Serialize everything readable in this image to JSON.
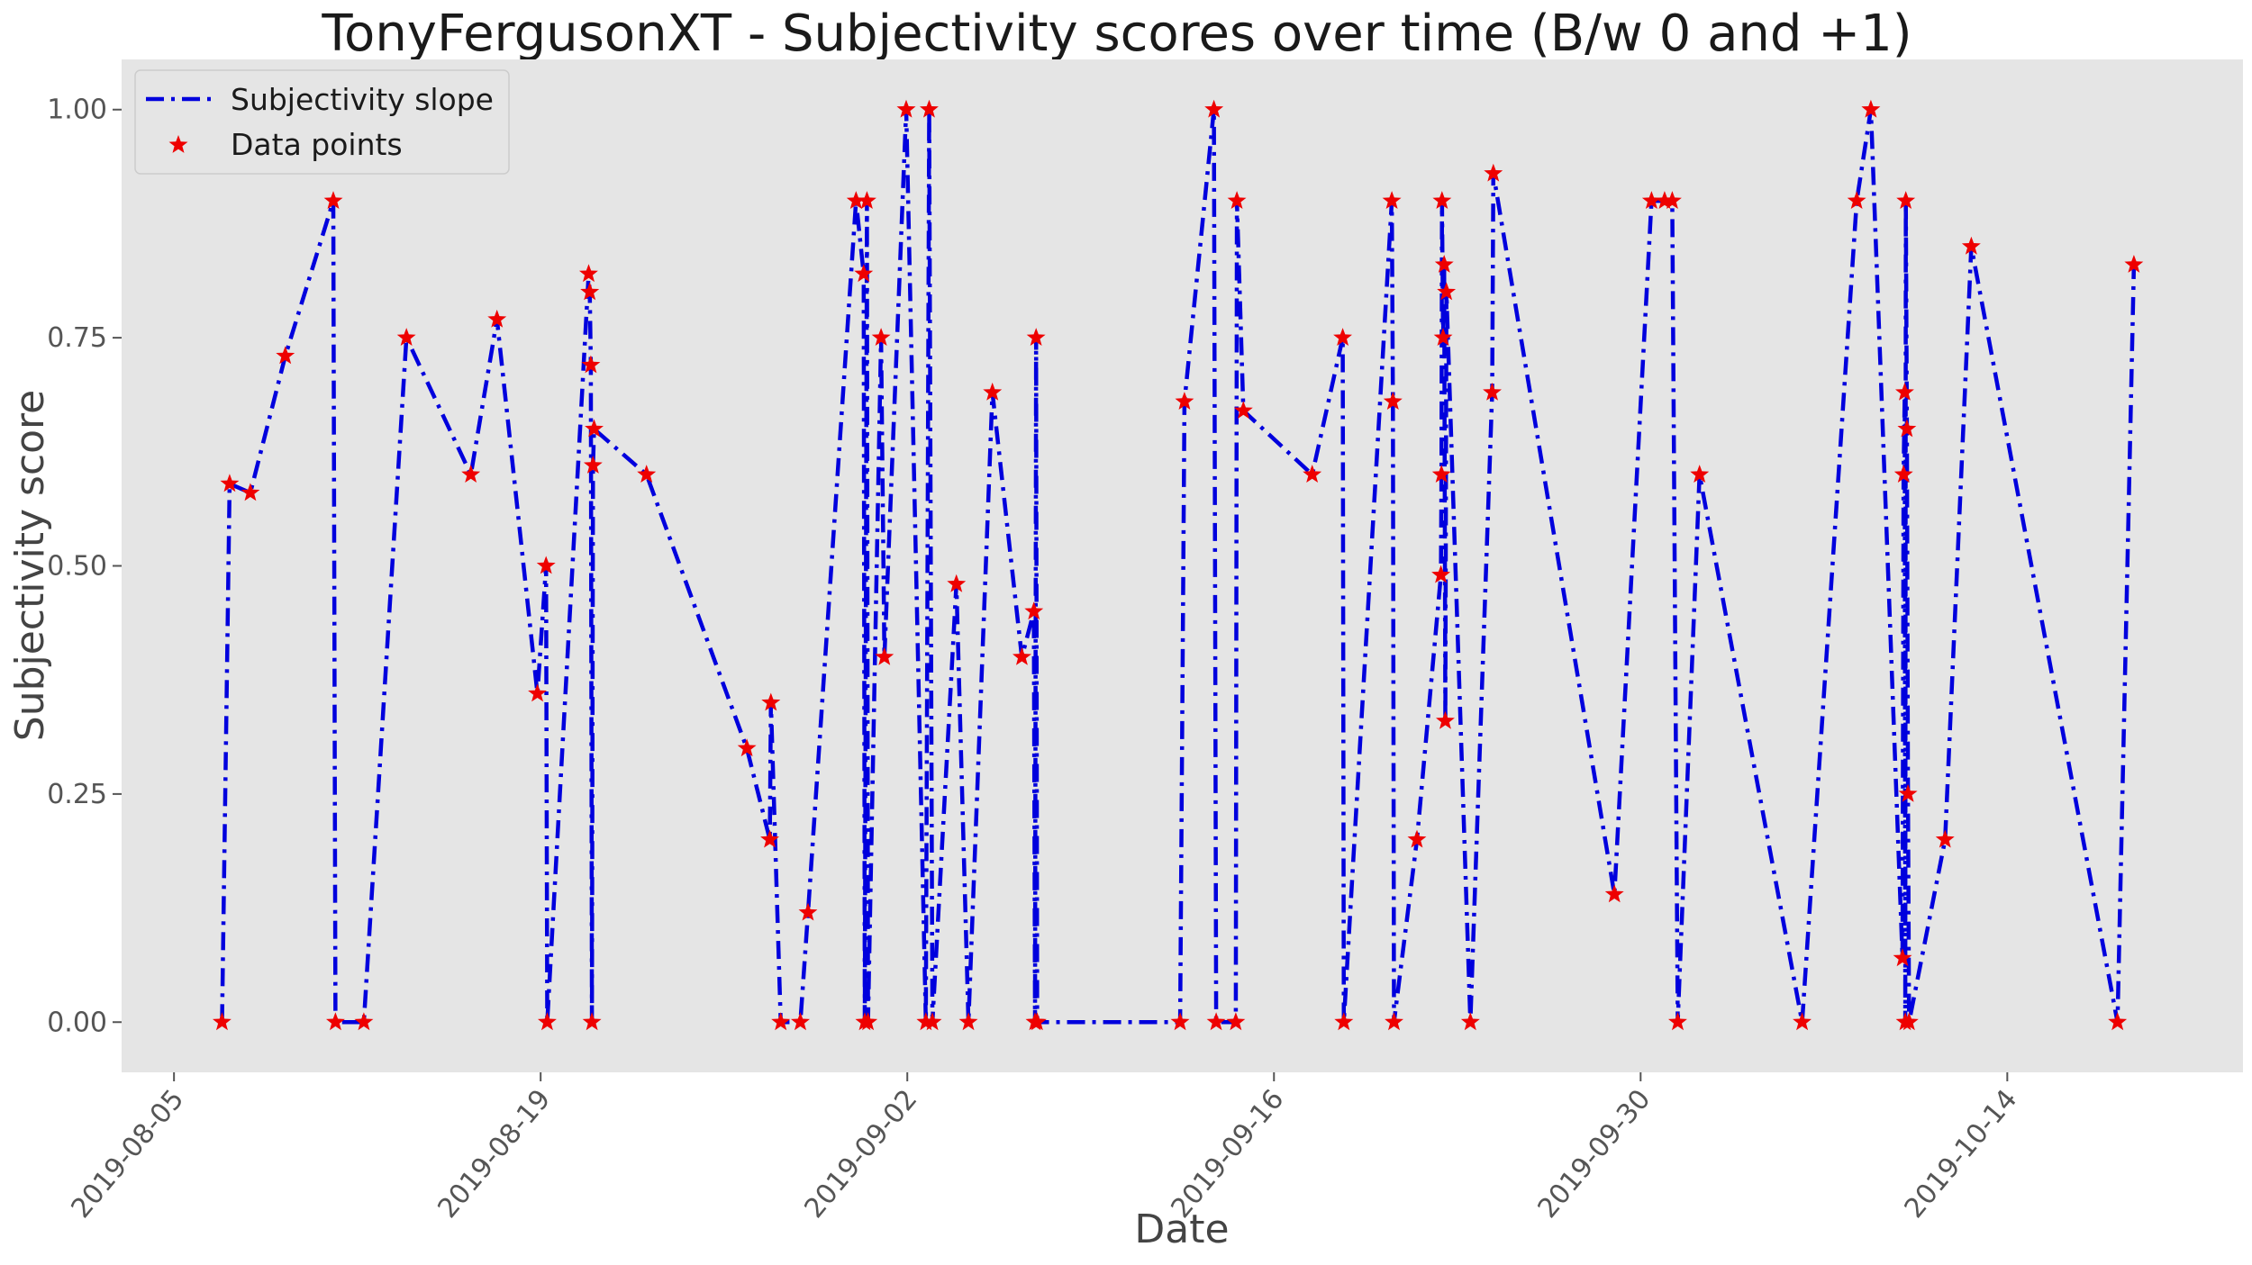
{
  "chart_data": {
    "type": "line",
    "title": "TonyFergusonXT - Subjectivity scores over time (B/w 0 and +1)",
    "xlabel": "Date",
    "ylabel": "Subjectivity score",
    "xlim": [
      "2019-08-03",
      "2019-10-23"
    ],
    "ylim": [
      -0.055,
      1.055
    ],
    "x_ticks": [
      "2019-08-05",
      "2019-08-19",
      "2019-09-02",
      "2019-09-16",
      "2019-09-30",
      "2019-10-14"
    ],
    "y_ticks": [
      0.0,
      0.25,
      0.5,
      0.75,
      1.0
    ],
    "y_tick_labels": [
      "0.00",
      "0.25",
      "0.50",
      "0.75",
      "1.00"
    ],
    "grid": false,
    "legend_position": "top-left",
    "colors": {
      "background": "#e5e5e5",
      "line": "#0000dd",
      "marker": "#ee0000"
    },
    "series": [
      {
        "name": "Subjectivity slope",
        "style": "dash-dot line"
      },
      {
        "name": "Data points",
        "style": "red star markers"
      }
    ],
    "points": [
      [
        "2019-08-06T20:00",
        0.0
      ],
      [
        "2019-08-07T03:00",
        0.59
      ],
      [
        "2019-08-07T22:00",
        0.58
      ],
      [
        "2019-08-09T06:00",
        0.73
      ],
      [
        "2019-08-11T02:00",
        0.9
      ],
      [
        "2019-08-11T04:00",
        0.0
      ],
      [
        "2019-08-12T06:00",
        0.0
      ],
      [
        "2019-08-13T21:00",
        0.75
      ],
      [
        "2019-08-16T08:00",
        0.6
      ],
      [
        "2019-08-17T08:00",
        0.77
      ],
      [
        "2019-08-18T21:00",
        0.36
      ],
      [
        "2019-08-19T05:00",
        0.5
      ],
      [
        "2019-08-19T06:00",
        0.0
      ],
      [
        "2019-08-20T20:00",
        0.82
      ],
      [
        "2019-08-20T21:00",
        0.8
      ],
      [
        "2019-08-20T22:00",
        0.72
      ],
      [
        "2019-08-20T23:00",
        0.0
      ],
      [
        "2019-08-21T00:00",
        0.61
      ],
      [
        "2019-08-21T01:00",
        0.65
      ],
      [
        "2019-08-23T01:00",
        0.6
      ],
      [
        "2019-08-26T21:00",
        0.3
      ],
      [
        "2019-08-27T18:00",
        0.2
      ],
      [
        "2019-08-27T19:00",
        0.35
      ],
      [
        "2019-08-28T04:00",
        0.0
      ],
      [
        "2019-08-28T22:00",
        0.0
      ],
      [
        "2019-08-29T05:00",
        0.12
      ],
      [
        "2019-08-31T01:00",
        0.9
      ],
      [
        "2019-08-31T08:00",
        0.82
      ],
      [
        "2019-08-31T09:00",
        0.0
      ],
      [
        "2019-08-31T11:00",
        0.9
      ],
      [
        "2019-08-31T12:00",
        0.0
      ],
      [
        "2019-09-01T00:00",
        0.75
      ],
      [
        "2019-09-01T03:00",
        0.4
      ],
      [
        "2019-09-01T23:00",
        1.0
      ],
      [
        "2019-09-02T17:00",
        0.0
      ],
      [
        "2019-09-02T20:00",
        1.0
      ],
      [
        "2019-09-02T23:00",
        0.0
      ],
      [
        "2019-09-03T21:00",
        0.48
      ],
      [
        "2019-09-04T08:00",
        0.0
      ],
      [
        "2019-09-05T06:00",
        0.69
      ],
      [
        "2019-09-06T09:00",
        0.4
      ],
      [
        "2019-09-06T20:00",
        0.45
      ],
      [
        "2019-09-06T21:00",
        0.0
      ],
      [
        "2019-09-06T22:00",
        0.75
      ],
      [
        "2019-09-06T23:00",
        0.0
      ],
      [
        "2019-09-12T10:00",
        0.0
      ],
      [
        "2019-09-12T14:00",
        0.68
      ],
      [
        "2019-09-13T17:00",
        1.0
      ],
      [
        "2019-09-13T19:00",
        0.0
      ],
      [
        "2019-09-14T13:00",
        0.0
      ],
      [
        "2019-09-14T14:00",
        0.9
      ],
      [
        "2019-09-14T20:00",
        0.67
      ],
      [
        "2019-09-17T11:00",
        0.6
      ],
      [
        "2019-09-18T15:00",
        0.75
      ],
      [
        "2019-09-18T16:00",
        0.0
      ],
      [
        "2019-09-20T12:00",
        0.9
      ],
      [
        "2019-09-20T13:00",
        0.68
      ],
      [
        "2019-09-20T14:00",
        0.0
      ],
      [
        "2019-09-21T11:00",
        0.2
      ],
      [
        "2019-09-22T09:00",
        0.49
      ],
      [
        "2019-09-22T09:30",
        0.6
      ],
      [
        "2019-09-22T10:00",
        0.9
      ],
      [
        "2019-09-22T11:00",
        0.75
      ],
      [
        "2019-09-22T12:00",
        0.83
      ],
      [
        "2019-09-22T13:00",
        0.33
      ],
      [
        "2019-09-22T14:00",
        0.8
      ],
      [
        "2019-09-23T12:00",
        0.0
      ],
      [
        "2019-09-24T08:00",
        0.69
      ],
      [
        "2019-09-24T09:00",
        0.93
      ],
      [
        "2019-09-29T00:00",
        0.14
      ],
      [
        "2019-09-30T10:00",
        0.9
      ],
      [
        "2019-09-30T22:00",
        0.9
      ],
      [
        "2019-10-01T05:00",
        0.9
      ],
      [
        "2019-10-01T10:00",
        0.0
      ],
      [
        "2019-10-02T06:00",
        0.6
      ],
      [
        "2019-10-06T04:00",
        0.0
      ],
      [
        "2019-10-08T06:00",
        0.9
      ],
      [
        "2019-10-08T19:00",
        1.0
      ],
      [
        "2019-10-10T00:00",
        0.07
      ],
      [
        "2019-10-10T01:00",
        0.6
      ],
      [
        "2019-10-10T02:00",
        0.69
      ],
      [
        "2019-10-10T02:30",
        0.0
      ],
      [
        "2019-10-10T03:00",
        0.9
      ],
      [
        "2019-10-10T04:00",
        0.65
      ],
      [
        "2019-10-10T05:00",
        0.25
      ],
      [
        "2019-10-10T06:00",
        0.0
      ],
      [
        "2019-10-11T15:00",
        0.2
      ],
      [
        "2019-10-12T15:00",
        0.85
      ],
      [
        "2019-10-18T05:00",
        0.0
      ],
      [
        "2019-10-18T20:00",
        0.83
      ]
    ]
  }
}
